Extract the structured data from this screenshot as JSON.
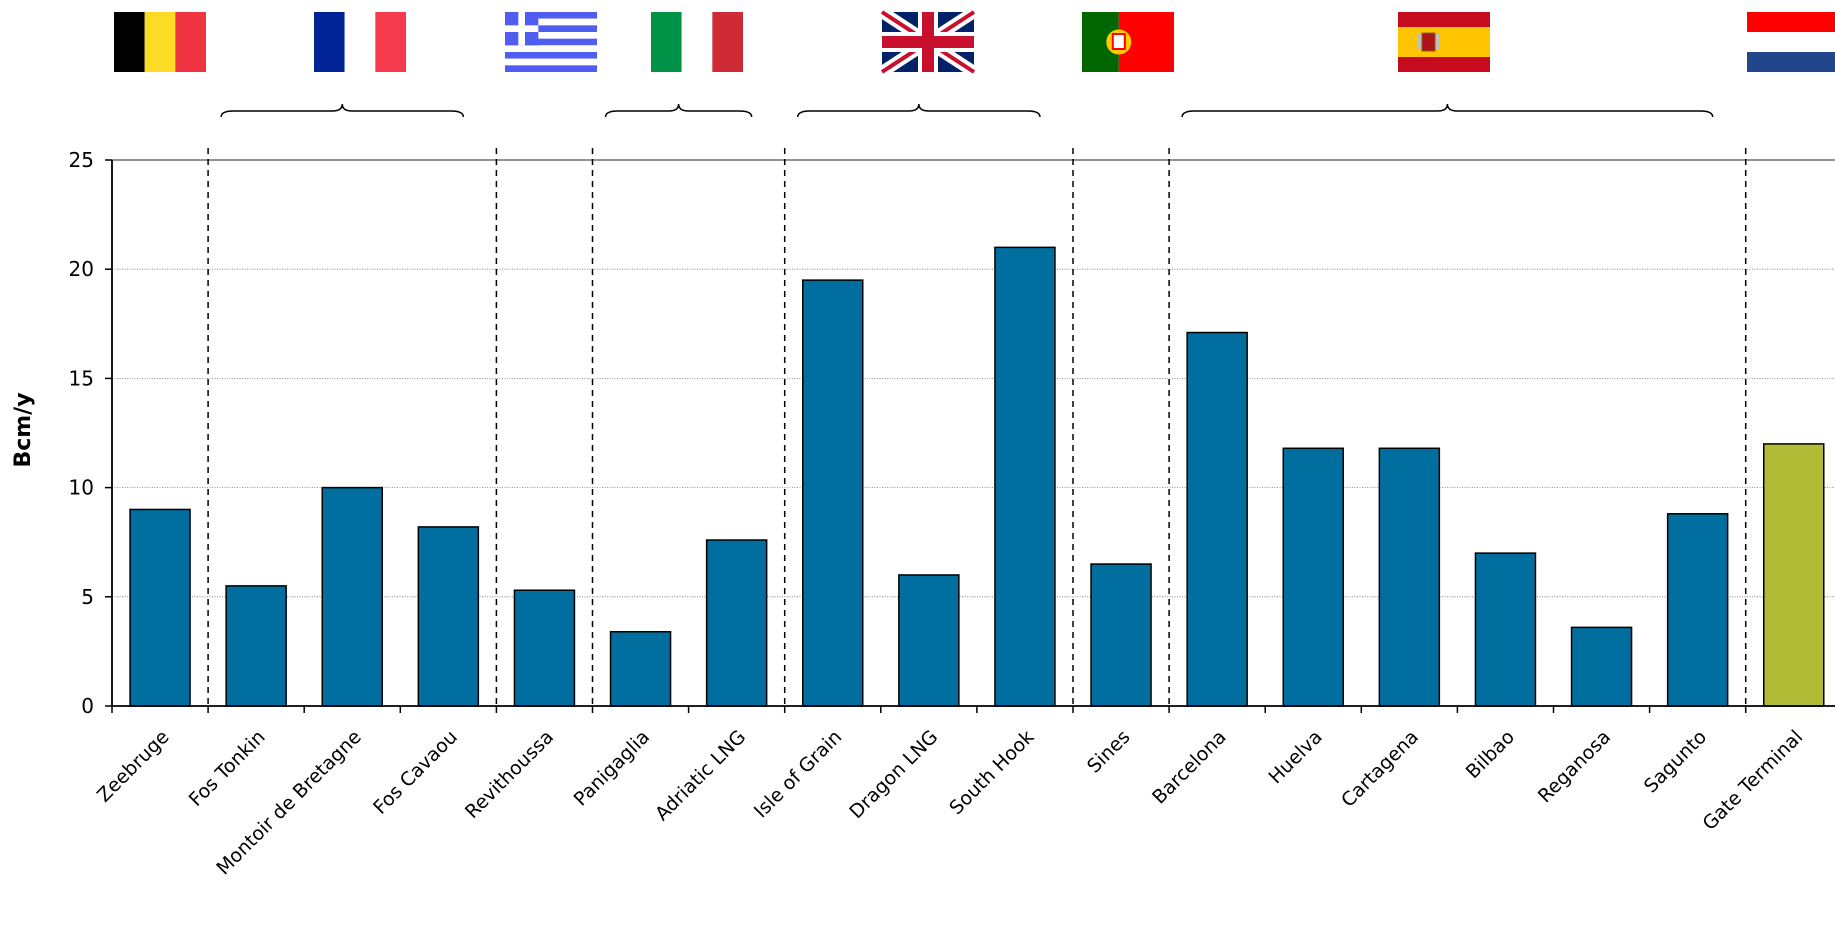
{
  "chart_data": {
    "type": "bar",
    "ylabel": "Bcm/y",
    "xlabel": "",
    "title": "",
    "ylim": [
      0,
      25
    ],
    "yticks": [
      0,
      5,
      10,
      15,
      20,
      25
    ],
    "grid": "horizontal dotted gridlines",
    "categories": [
      "Zeebruge",
      "Fos Tonkin",
      "Montoir de Bretagne",
      "Fos Cavaou",
      "Revithoussa",
      "Panigaglia",
      "Adriatic LNG",
      "Isle of Grain",
      "Dragon LNG",
      "South Hook",
      "Sines",
      "Barcelona",
      "Huelva",
      "Cartagena",
      "Bilbao",
      "Reganosa",
      "Sagunto",
      "Gate Terminal"
    ],
    "values": [
      9.0,
      5.5,
      10.0,
      8.2,
      5.3,
      3.4,
      7.6,
      19.5,
      6.0,
      21.0,
      6.5,
      17.1,
      11.8,
      11.8,
      7.0,
      3.6,
      8.8,
      12.0
    ],
    "bar_colors": [
      "#006f9f",
      "#006f9f",
      "#006f9f",
      "#006f9f",
      "#006f9f",
      "#006f9f",
      "#006f9f",
      "#006f9f",
      "#006f9f",
      "#006f9f",
      "#006f9f",
      "#006f9f",
      "#006f9f",
      "#006f9f",
      "#006f9f",
      "#006f9f",
      "#006f9f",
      "#b2bb35"
    ],
    "country_groups": [
      {
        "country": "Belgium",
        "flag": "belgium-flag",
        "first": 0,
        "last": 0
      },
      {
        "country": "France",
        "flag": "france-flag",
        "first": 1,
        "last": 3
      },
      {
        "country": "Greece",
        "flag": "greece-flag",
        "first": 4,
        "last": 4
      },
      {
        "country": "Italy",
        "flag": "italy-flag",
        "first": 5,
        "last": 6
      },
      {
        "country": "United Kingdom",
        "flag": "uk-flag",
        "first": 7,
        "last": 9
      },
      {
        "country": "Portugal",
        "flag": "portugal-flag",
        "first": 10,
        "last": 10
      },
      {
        "country": "Spain",
        "flag": "spain-flag",
        "first": 11,
        "last": 16
      },
      {
        "country": "Netherlands",
        "flag": "netherlands-flag",
        "first": 17,
        "last": 17
      }
    ]
  }
}
